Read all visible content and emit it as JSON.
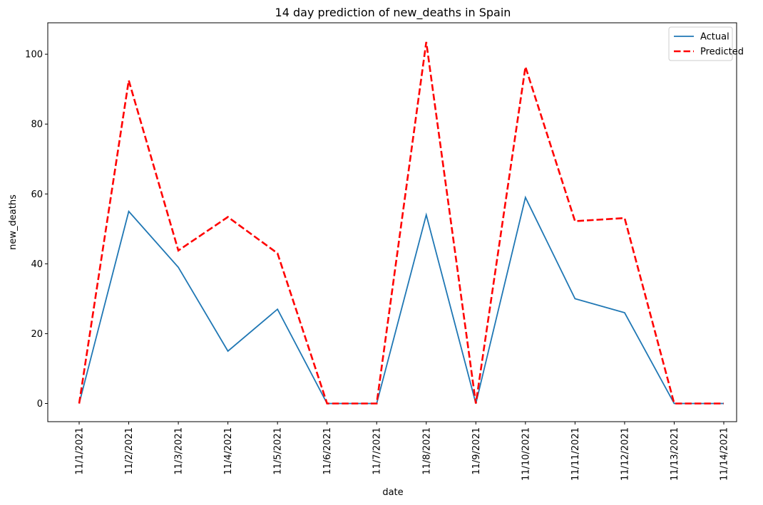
{
  "chart_data": {
    "type": "line",
    "title": "14 day prediction of new_deaths in Spain",
    "xlabel": "date",
    "ylabel": "new_deaths",
    "categories": [
      "11/1/2021",
      "11/2/2021",
      "11/3/2021",
      "11/4/2021",
      "11/5/2021",
      "11/6/2021",
      "11/7/2021",
      "11/8/2021",
      "11/9/2021",
      "11/10/2021",
      "11/11/2021",
      "11/12/2021",
      "11/13/2021",
      "11/14/2021"
    ],
    "ylim": [
      -5.2,
      109
    ],
    "yticks": [
      0,
      20,
      40,
      60,
      80,
      100
    ],
    "grid": false,
    "legend_position": "top-right",
    "series": [
      {
        "name": "Actual",
        "color": "#1f77b4",
        "style": "solid",
        "values": [
          0,
          55,
          39,
          15,
          27,
          0,
          0,
          54,
          0,
          59,
          30,
          26,
          0,
          0
        ]
      },
      {
        "name": "Predicted",
        "color": "#ff0000",
        "style": "dashed",
        "values": [
          0,
          92.5,
          43.8,
          53.4,
          43,
          0,
          0,
          103.5,
          0,
          96.4,
          52.2,
          53.1,
          0,
          0
        ]
      }
    ]
  }
}
